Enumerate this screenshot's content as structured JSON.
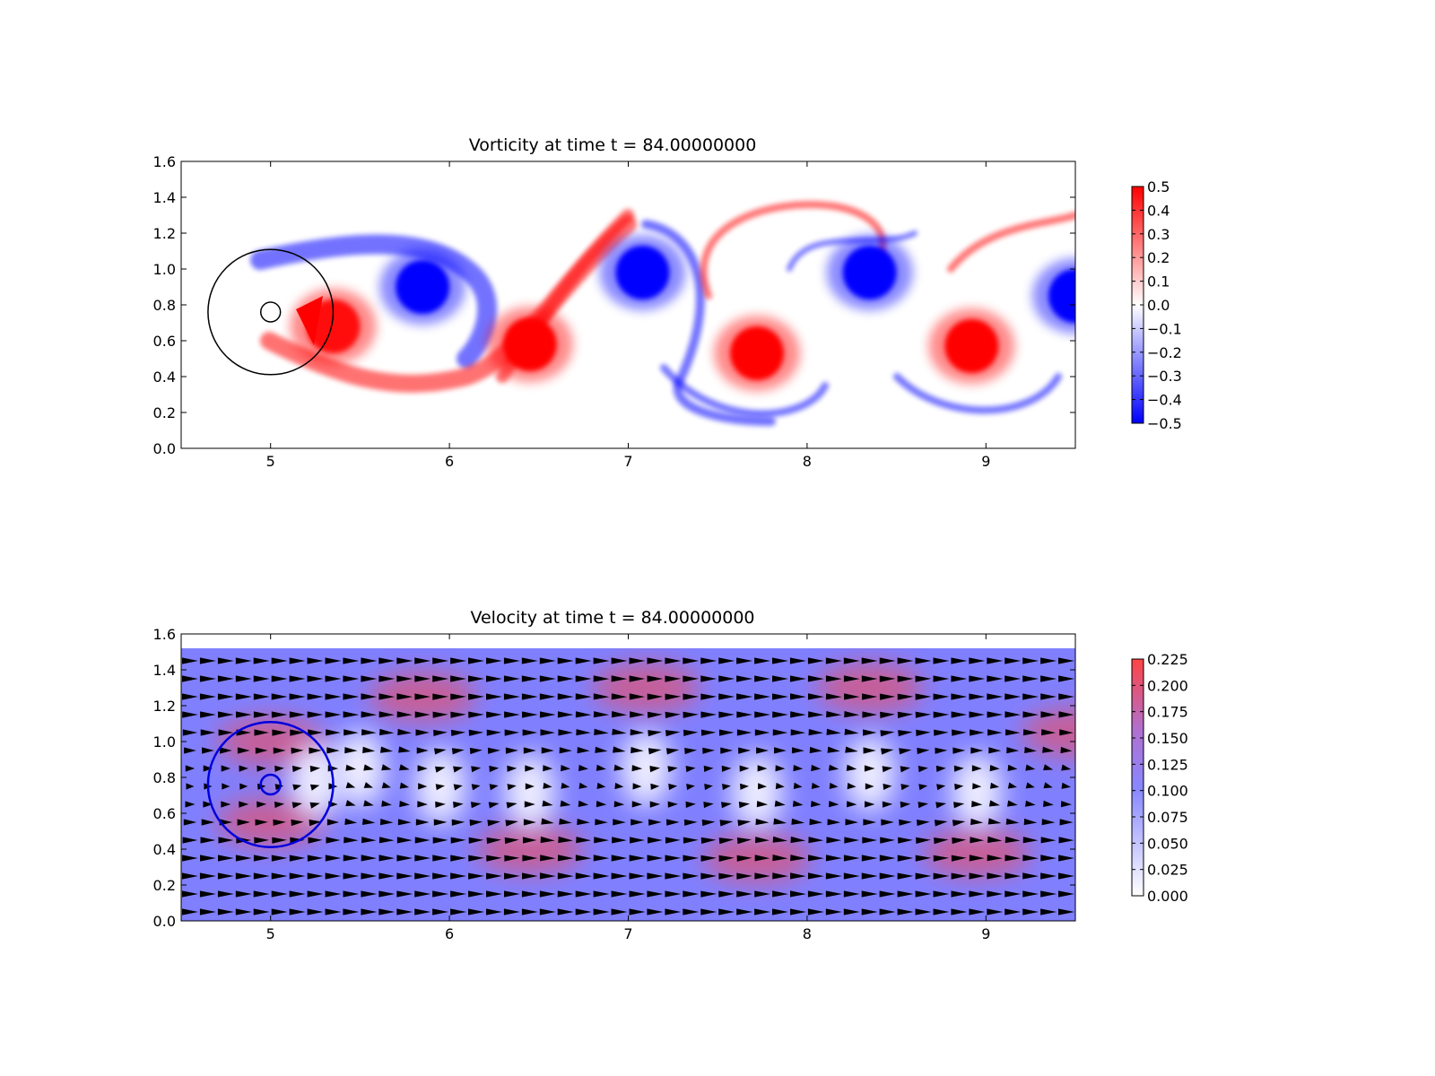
{
  "chart_data": [
    {
      "type": "heatmap",
      "title": "Vorticity at time t =    84.00000000",
      "xlim": [
        4.5,
        9.5
      ],
      "ylim": [
        0.0,
        1.6
      ],
      "x_ticks": [
        "5",
        "6",
        "7",
        "8",
        "9"
      ],
      "y_ticks": [
        "0.0",
        "0.2",
        "0.4",
        "0.6",
        "0.8",
        "1.0",
        "1.2",
        "1.4",
        "1.6"
      ],
      "colormap": "bwr",
      "color_low": "#0000ff",
      "color_mid": "#ffffff",
      "color_high": "#ff0000",
      "colorbar_range": [
        -0.5,
        0.5
      ],
      "colorbar_ticks": [
        "0.5",
        "0.4",
        "0.3",
        "0.2",
        "0.1",
        "0.0",
        "−0.1",
        "−0.2",
        "−0.3",
        "−0.4",
        "−0.5"
      ],
      "vortices": [
        {
          "x": 5.35,
          "y": 0.68,
          "vorticity": 0.45
        },
        {
          "x": 5.85,
          "y": 0.9,
          "vorticity": -0.5
        },
        {
          "x": 6.45,
          "y": 0.58,
          "vorticity": 0.5
        },
        {
          "x": 7.08,
          "y": 0.98,
          "vorticity": -0.5
        },
        {
          "x": 7.72,
          "y": 0.53,
          "vorticity": 0.5
        },
        {
          "x": 8.35,
          "y": 0.98,
          "vorticity": -0.5
        },
        {
          "x": 8.92,
          "y": 0.57,
          "vorticity": 0.5
        },
        {
          "x": 9.5,
          "y": 0.85,
          "vorticity": -0.5
        }
      ],
      "circles": [
        {
          "cx": 5.0,
          "cy": 0.76,
          "r": 0.35,
          "color": "#000000"
        },
        {
          "cx": 5.0,
          "cy": 0.76,
          "r": 0.055,
          "color": "#000000"
        }
      ]
    },
    {
      "type": "quiver",
      "title": "Velocity at time t =    84.00000000",
      "xlim": [
        4.5,
        9.5
      ],
      "ylim": [
        0.0,
        1.6
      ],
      "x_ticks": [
        "5",
        "6",
        "7",
        "8",
        "9"
      ],
      "y_ticks": [
        "0.0",
        "0.2",
        "0.4",
        "0.6",
        "0.8",
        "1.0",
        "1.2",
        "1.4",
        "1.6"
      ],
      "field_ymax": 1.52,
      "background_color": "#8080ff",
      "color_low": "#ffffff",
      "color_mid": "#8888ff",
      "color_high": "#ff4444",
      "colorbar_range": [
        0.0,
        0.225
      ],
      "colorbar_ticks": [
        "0.225",
        "0.200",
        "0.175",
        "0.150",
        "0.125",
        "0.100",
        "0.075",
        "0.050",
        "0.025",
        "0.000"
      ],
      "arrow_color": "#000000",
      "circles": [
        {
          "cx": 5.0,
          "cy": 0.76,
          "r": 0.35,
          "color": "#0000dd"
        },
        {
          "cx": 5.0,
          "cy": 0.76,
          "r": 0.055,
          "color": "#0000dd"
        }
      ]
    }
  ]
}
